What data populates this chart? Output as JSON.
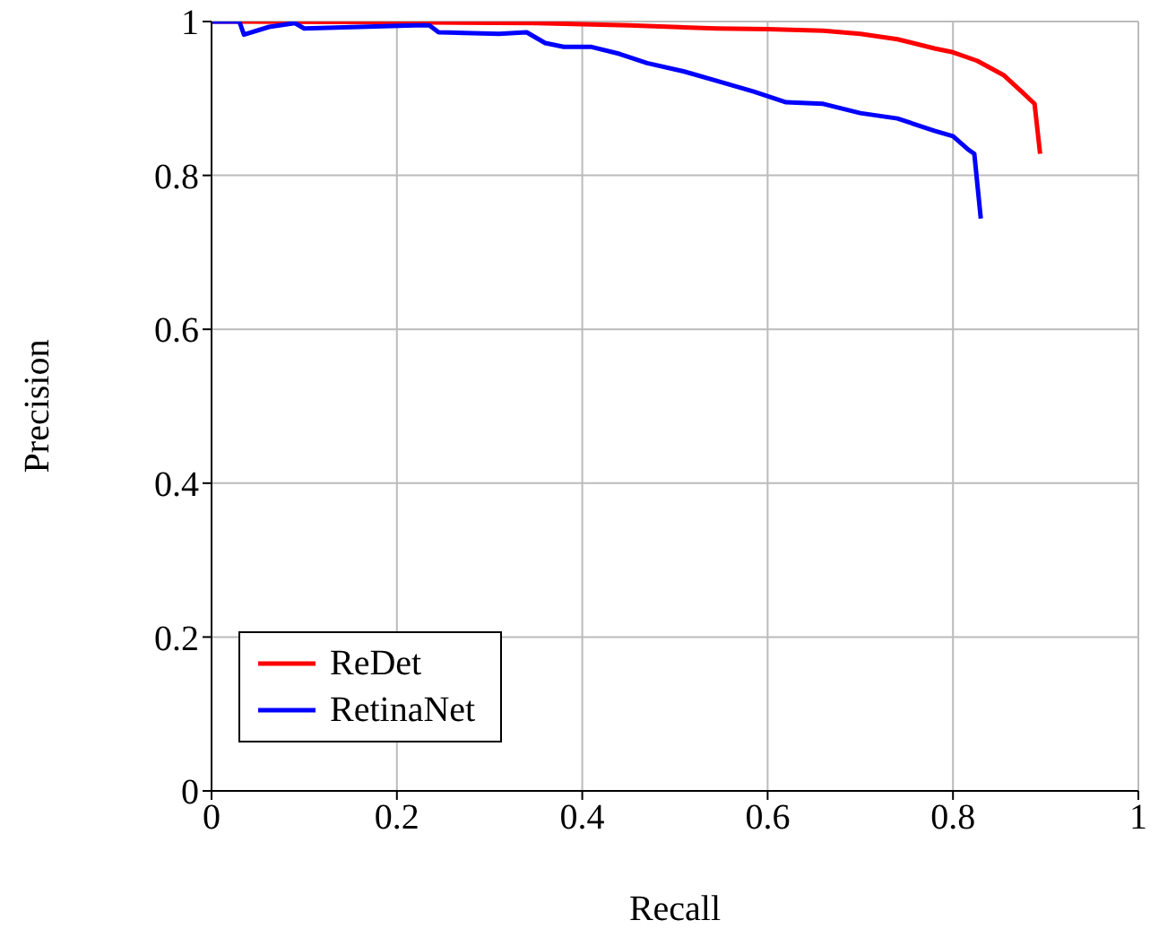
{
  "chart_data": {
    "type": "line",
    "xlabel": "Recall",
    "ylabel": "Precision",
    "xlim": [
      0,
      1
    ],
    "ylim": [
      0,
      1
    ],
    "xticks": [
      0,
      0.2,
      0.4,
      0.6,
      0.8,
      1
    ],
    "yticks": [
      0,
      0.2,
      0.4,
      0.6,
      0.8,
      1
    ],
    "grid": true,
    "legend": "bottom left",
    "marker": "none",
    "line_style": "solid",
    "series": [
      {
        "name": "ReDet",
        "color": "#ff0000",
        "x": [
          0,
          0.2,
          0.35,
          0.45,
          0.545,
          0.6,
          0.66,
          0.7,
          0.74,
          0.78,
          0.8,
          0.826,
          0.855,
          0.874,
          0.888,
          0.894
        ],
        "values": [
          1,
          0.999,
          0.998,
          0.995,
          0.991,
          0.99,
          0.988,
          0.984,
          0.977,
          0.965,
          0.96,
          0.949,
          0.93,
          0.909,
          0.893,
          0.828
        ]
      },
      {
        "name": "RetinaNet",
        "color": "#0000ff",
        "x": [
          0,
          0.03,
          0.035,
          0.062,
          0.09,
          0.1,
          0.22,
          0.235,
          0.245,
          0.31,
          0.34,
          0.36,
          0.38,
          0.41,
          0.44,
          0.47,
          0.51,
          0.545,
          0.585,
          0.62,
          0.66,
          0.7,
          0.74,
          0.78,
          0.8,
          0.816,
          0.823,
          0.83
        ],
        "values": [
          1,
          1,
          0.983,
          0.993,
          0.998,
          0.991,
          0.995,
          0.995,
          0.986,
          0.984,
          0.986,
          0.972,
          0.967,
          0.967,
          0.958,
          0.946,
          0.935,
          0.923,
          0.909,
          0.895,
          0.893,
          0.881,
          0.874,
          0.858,
          0.851,
          0.834,
          0.828,
          0.744
        ]
      }
    ]
  }
}
